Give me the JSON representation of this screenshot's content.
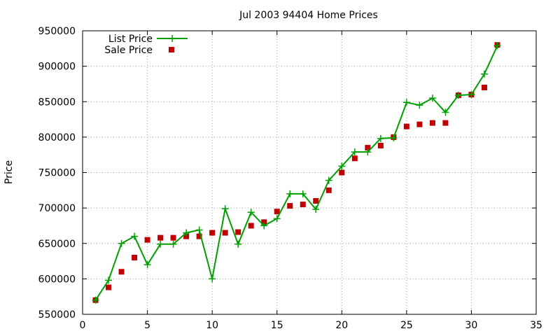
{
  "chart_data": {
    "type": "line",
    "title": "Jul 2003 94404 Home Prices",
    "xlabel": "",
    "ylabel": "Price",
    "xlim": [
      0,
      35
    ],
    "ylim": [
      550000,
      950000
    ],
    "xticks": [
      0,
      5,
      10,
      15,
      20,
      25,
      30,
      35
    ],
    "yticks": [
      550000,
      600000,
      650000,
      700000,
      750000,
      800000,
      850000,
      900000,
      950000
    ],
    "xtick_labels": [
      "0",
      "5",
      "10",
      "15",
      "20",
      "25",
      "30",
      "35"
    ],
    "ytick_labels": [
      "550000",
      "600000",
      "650000",
      "700000",
      "750000",
      "800000",
      "850000",
      "900000",
      "950000"
    ],
    "grid": true,
    "legend_position": "top-left",
    "x": [
      1,
      2,
      3,
      4,
      5,
      6,
      7,
      8,
      9,
      10,
      11,
      12,
      13,
      14,
      15,
      16,
      17,
      18,
      19,
      20,
      21,
      22,
      23,
      24,
      25,
      26,
      27,
      28,
      29,
      30,
      31,
      32
    ],
    "series": [
      {
        "name": "List Price",
        "style": "linespoints",
        "color": "#00a000",
        "values": [
          570000,
          598000,
          650000,
          660000,
          620000,
          649000,
          649000,
          665000,
          669000,
          600000,
          699000,
          649000,
          694000,
          675000,
          685000,
          720000,
          720000,
          698000,
          739000,
          759000,
          779000,
          779000,
          798000,
          799000,
          849000,
          845000,
          855000,
          835000,
          859000,
          860000,
          889000,
          929000
        ]
      },
      {
        "name": "Sale Price",
        "style": "points",
        "color": "#c00000",
        "values": [
          570000,
          588000,
          610000,
          630000,
          655000,
          658000,
          658000,
          660000,
          660000,
          665000,
          665000,
          666000,
          675000,
          680000,
          695000,
          703000,
          705000,
          710000,
          725000,
          750000,
          770000,
          785000,
          788000,
          800000,
          815000,
          818000,
          820000,
          820000,
          859000,
          860000,
          870000,
          930000
        ]
      }
    ]
  }
}
